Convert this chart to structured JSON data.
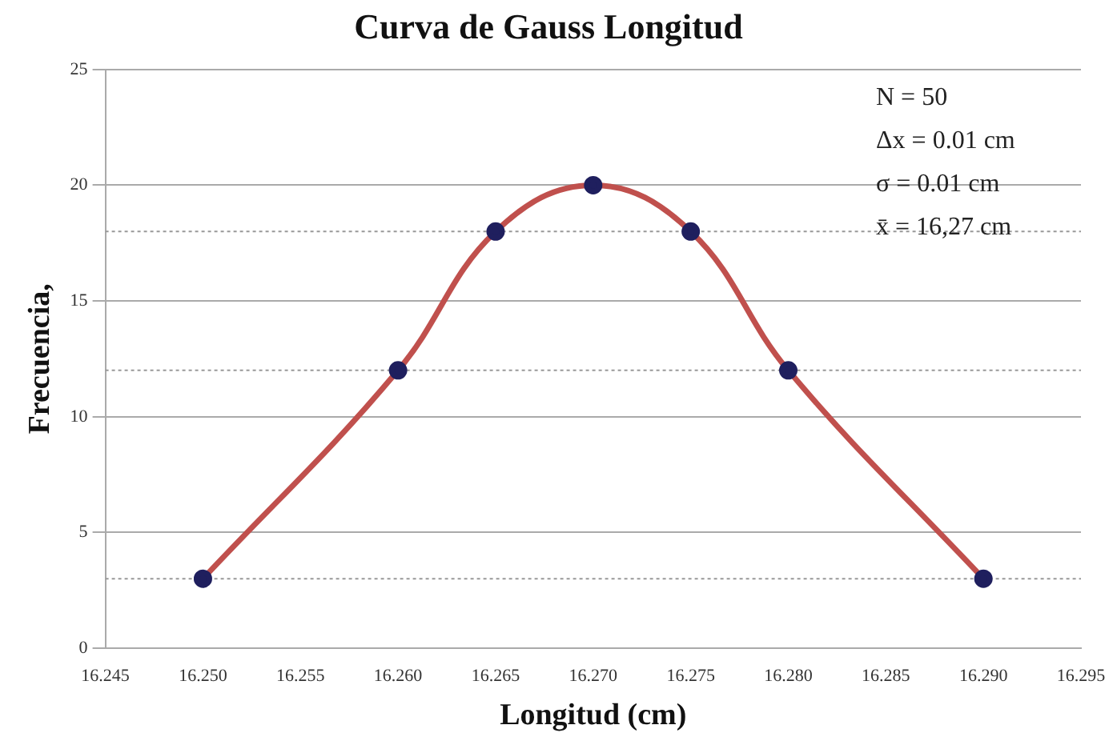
{
  "chart_data": {
    "type": "line",
    "title": "Curva de Gauss Longitud",
    "xlabel": "Longitud (cm)",
    "ylabel": "Frecuencia,",
    "x": [
      16.25,
      16.26,
      16.265,
      16.27,
      16.275,
      16.28,
      16.29
    ],
    "series": [
      {
        "color": "#c0504d",
        "values": [
          3,
          12,
          18,
          20,
          18,
          12,
          3
        ]
      }
    ],
    "xlim": [
      16.245,
      16.295
    ],
    "xticks": [
      {
        "value": 16.245,
        "label": "16.245"
      },
      {
        "value": 16.25,
        "label": "16.250"
      },
      {
        "value": 16.255,
        "label": "16.255"
      },
      {
        "value": 16.26,
        "label": "16.260"
      },
      {
        "value": 16.265,
        "label": "16.265"
      },
      {
        "value": 16.27,
        "label": "16.270"
      },
      {
        "value": 16.275,
        "label": "16.275"
      },
      {
        "value": 16.28,
        "label": "16.280"
      },
      {
        "value": 16.285,
        "label": "16.285"
      },
      {
        "value": 16.29,
        "label": "16.290"
      },
      {
        "value": 16.295,
        "label": "16.295"
      }
    ],
    "ylim": [
      0,
      25
    ],
    "yticks": [
      0,
      5,
      10,
      15,
      20,
      25
    ],
    "grid": "y",
    "marker": "circle",
    "line_style": "solid",
    "legend": false,
    "ref_lines": [
      {
        "axis": "y",
        "value": 3,
        "line_style": "dotted",
        "color": "#999999"
      },
      {
        "axis": "y",
        "value": 12,
        "line_style": "dotted",
        "color": "#999999"
      },
      {
        "axis": "y",
        "value": 18,
        "line_style": "dotted",
        "color": "#999999"
      }
    ],
    "annotations": [
      "N = 50",
      "Δx = 0.01 cm",
      "σ = 0.01 cm",
      "x̄ = 16,27 cm"
    ]
  }
}
